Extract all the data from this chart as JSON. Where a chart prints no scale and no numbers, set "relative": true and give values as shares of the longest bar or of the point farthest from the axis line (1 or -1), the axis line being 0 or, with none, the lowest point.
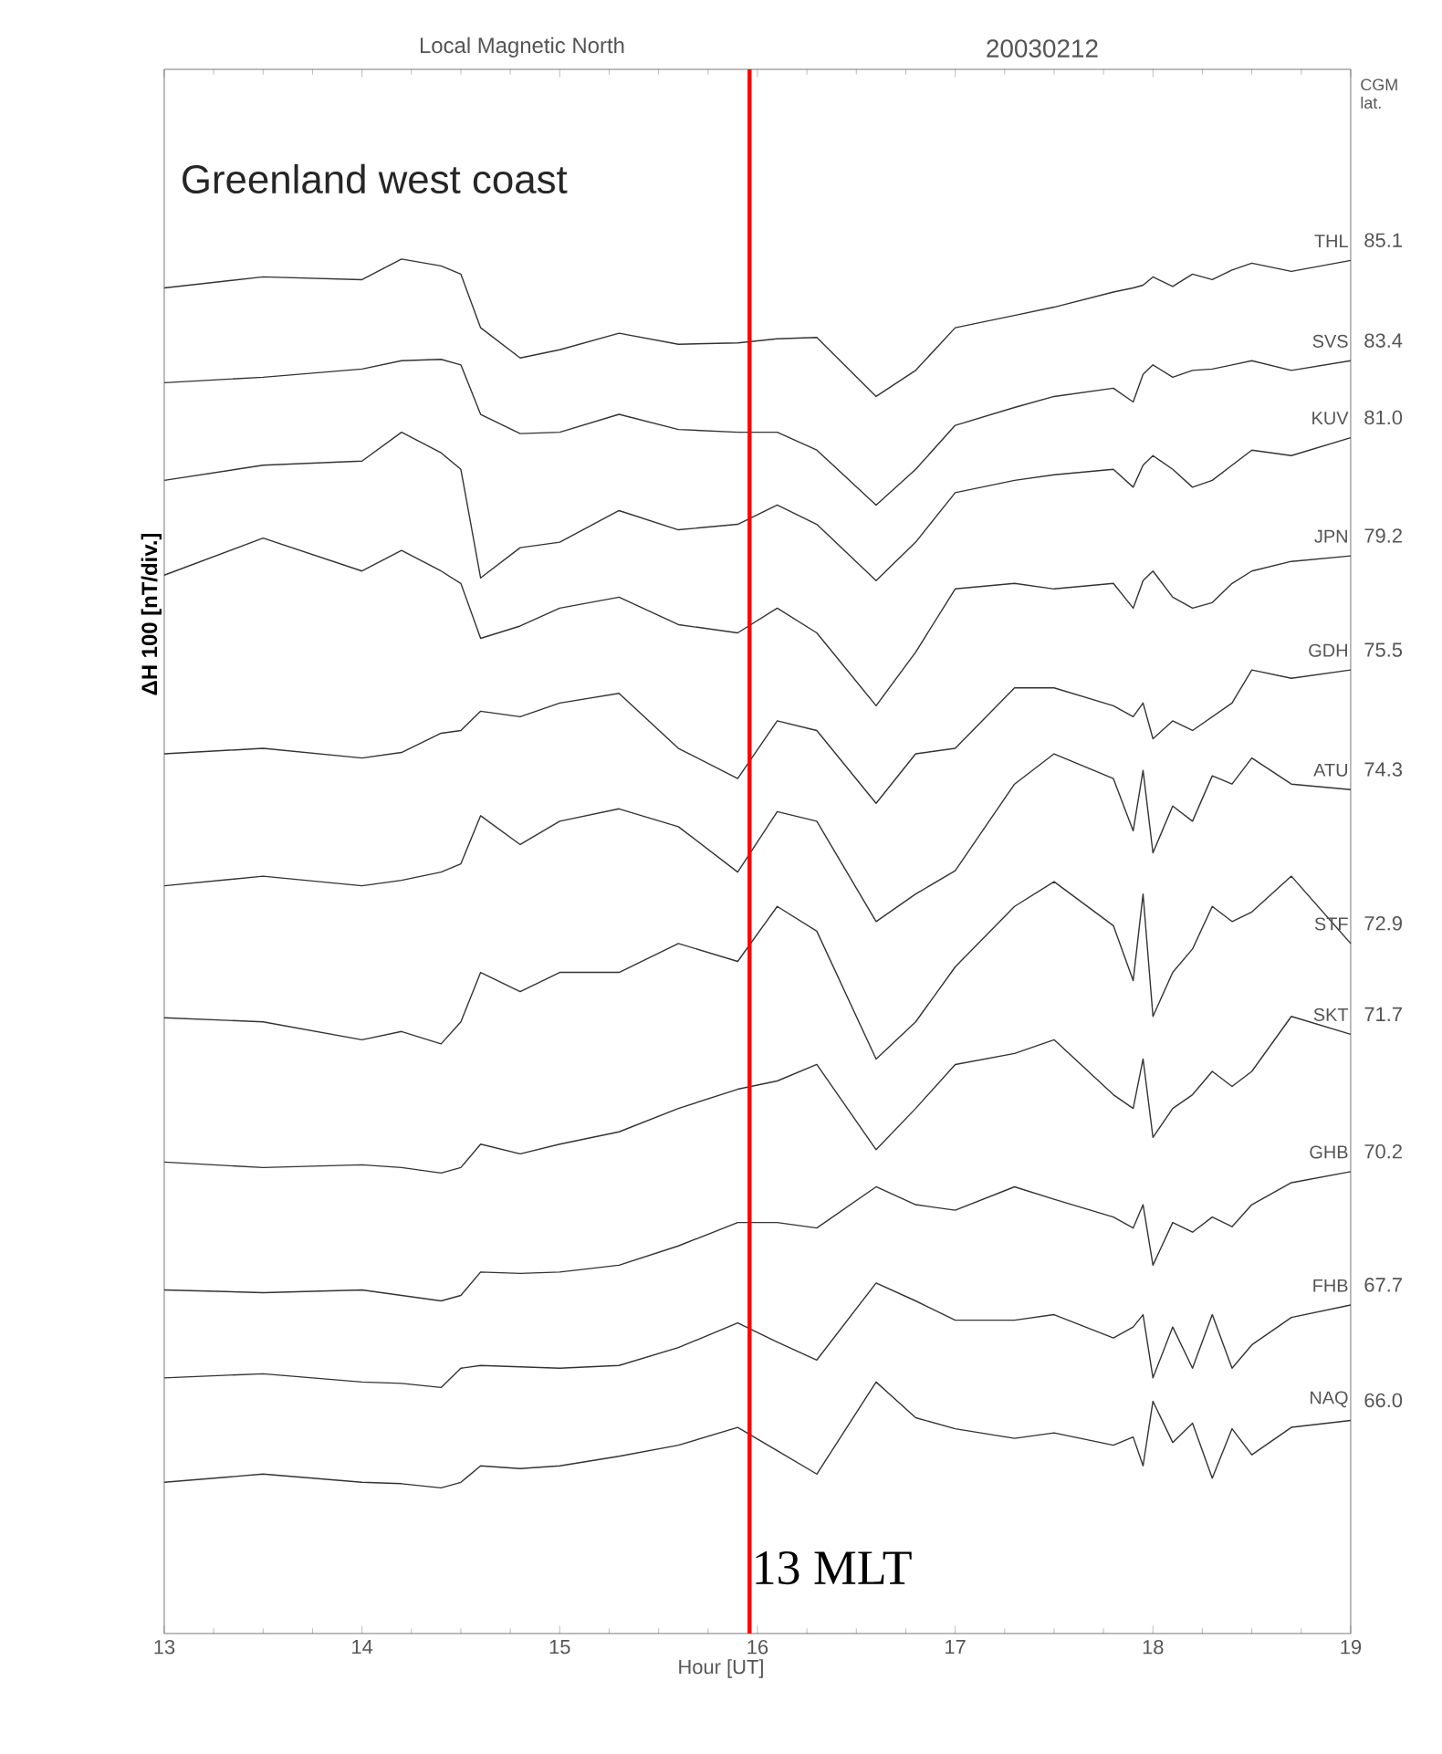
{
  "chart_data": {
    "type": "line",
    "relative": true,
    "title": "Local Magnetic North",
    "subtitle": "20030212",
    "xlabel": "Hour  [UT]",
    "ylabel": "ΔH   100 [nT/div.]",
    "xlim": [
      13,
      19
    ],
    "xticks": [
      13,
      14,
      15,
      16,
      17,
      18,
      19
    ],
    "x": [
      13,
      13.5,
      14,
      14.2,
      14.4,
      14.5,
      14.6,
      14.8,
      15,
      15.3,
      15.6,
      15.9,
      16.1,
      16.3,
      16.6,
      16.8,
      17,
      17.3,
      17.5,
      17.8,
      17.9,
      17.95,
      18,
      18.1,
      18.2,
      18.3,
      18.4,
      18.5,
      18.7,
      19
    ],
    "series": [
      {
        "name": "THL",
        "color": "#333333",
        "values": [
          0.979,
          0.987,
          0.985,
          1,
          0.995,
          0.989,
          0.95,
          0.928,
          0.934,
          0.946,
          0.938,
          0.939,
          0.942,
          0.943,
          0.9,
          0.919,
          0.95,
          0.959,
          0.965,
          0.976,
          0.979,
          0.981,
          0.987,
          0.98,
          0.989,
          0.985,
          0.992,
          0.997,
          0.991,
          0.999
        ]
      },
      {
        "name": "SVS",
        "color": "#333333",
        "values": [
          0.91,
          0.914,
          0.92,
          0.926,
          0.927,
          0.923,
          0.887,
          0.873,
          0.874,
          0.887,
          0.876,
          0.874,
          0.874,
          0.861,
          0.821,
          0.847,
          0.879,
          0.892,
          0.9,
          0.906,
          0.896,
          0.916,
          0.923,
          0.914,
          0.919,
          0.92,
          0.923,
          0.926,
          0.919,
          0.926
        ]
      },
      {
        "name": "KUV",
        "color": "#333333",
        "values": [
          0.839,
          0.85,
          0.853,
          0.874,
          0.859,
          0.847,
          0.768,
          0.79,
          0.794,
          0.817,
          0.803,
          0.807,
          0.821,
          0.807,
          0.766,
          0.794,
          0.83,
          0.839,
          0.843,
          0.847,
          0.834,
          0.85,
          0.857,
          0.847,
          0.834,
          0.839,
          0.85,
          0.861,
          0.857,
          0.87
        ]
      },
      {
        "name": "JPN",
        "color": "#333333",
        "values": [
          0.77,
          0.797,
          0.773,
          0.788,
          0.773,
          0.764,
          0.724,
          0.733,
          0.746,
          0.754,
          0.734,
          0.728,
          0.746,
          0.728,
          0.675,
          0.714,
          0.76,
          0.764,
          0.76,
          0.764,
          0.746,
          0.766,
          0.773,
          0.754,
          0.746,
          0.75,
          0.764,
          0.773,
          0.78,
          0.784
        ]
      },
      {
        "name": "GDH",
        "color": "#333333",
        "values": [
          0.64,
          0.644,
          0.637,
          0.641,
          0.655,
          0.657,
          0.671,
          0.667,
          0.677,
          0.684,
          0.644,
          0.622,
          0.664,
          0.657,
          0.604,
          0.64,
          0.644,
          0.688,
          0.688,
          0.675,
          0.667,
          0.677,
          0.651,
          0.664,
          0.657,
          0.667,
          0.677,
          0.701,
          0.695,
          0.701
        ]
      },
      {
        "name": "ATU",
        "color": "#333333",
        "values": [
          0.544,
          0.551,
          0.544,
          0.548,
          0.554,
          0.56,
          0.595,
          0.574,
          0.591,
          0.6,
          0.587,
          0.554,
          0.598,
          0.591,
          0.518,
          0.538,
          0.555,
          0.618,
          0.64,
          0.622,
          0.584,
          0.628,
          0.568,
          0.602,
          0.591,
          0.624,
          0.618,
          0.637,
          0.618,
          0.614
        ]
      },
      {
        "name": "STF",
        "color": "#333333",
        "values": [
          0.448,
          0.445,
          0.432,
          0.438,
          0.429,
          0.445,
          0.481,
          0.467,
          0.481,
          0.481,
          0.502,
          0.489,
          0.529,
          0.511,
          0.418,
          0.445,
          0.485,
          0.529,
          0.547,
          0.515,
          0.475,
          0.538,
          0.449,
          0.481,
          0.498,
          0.529,
          0.518,
          0.525,
          0.551,
          0.502
        ]
      },
      {
        "name": "SKT",
        "color": "#333333",
        "values": [
          0.343,
          0.339,
          0.341,
          0.339,
          0.335,
          0.339,
          0.356,
          0.349,
          0.356,
          0.365,
          0.382,
          0.396,
          0.402,
          0.414,
          0.352,
          0.382,
          0.414,
          0.422,
          0.432,
          0.392,
          0.382,
          0.418,
          0.361,
          0.382,
          0.392,
          0.409,
          0.398,
          0.409,
          0.449,
          0.436
        ]
      },
      {
        "name": "GHB",
        "color": "#333333",
        "values": [
          0.25,
          0.248,
          0.25,
          0.246,
          0.242,
          0.246,
          0.263,
          0.262,
          0.263,
          0.268,
          0.282,
          0.299,
          0.299,
          0.295,
          0.325,
          0.312,
          0.308,
          0.325,
          0.316,
          0.303,
          0.295,
          0.312,
          0.268,
          0.299,
          0.292,
          0.303,
          0.296,
          0.312,
          0.328,
          0.336
        ]
      },
      {
        "name": "FHB",
        "color": "#333333",
        "values": [
          0.186,
          0.189,
          0.183,
          0.182,
          0.179,
          0.193,
          0.195,
          0.194,
          0.193,
          0.195,
          0.208,
          0.226,
          0.212,
          0.199,
          0.255,
          0.242,
          0.228,
          0.228,
          0.232,
          0.215,
          0.223,
          0.232,
          0.186,
          0.223,
          0.193,
          0.232,
          0.193,
          0.21,
          0.23,
          0.239
        ]
      },
      {
        "name": "NAQ",
        "color": "#333333",
        "values": [
          0.11,
          0.116,
          0.11,
          0.109,
          0.106,
          0.11,
          0.122,
          0.12,
          0.122,
          0.129,
          0.137,
          0.15,
          0.133,
          0.116,
          0.183,
          0.157,
          0.149,
          0.142,
          0.146,
          0.137,
          0.143,
          0.122,
          0.169,
          0.139,
          0.153,
          0.113,
          0.149,
          0.13,
          0.15,
          0.155
        ]
      }
    ],
    "ref_lines": [
      {
        "axis": "x",
        "value": 15.96,
        "label": "13 MLT",
        "color": "#ff0000"
      }
    ],
    "annotations": [
      "Greenland west coast",
      "CGM lat.",
      "85.1",
      "83.4",
      "81.0",
      "79.2",
      "75.5",
      "74.3",
      "72.9",
      "71.7",
      "70.2",
      "67.7",
      "66.0"
    ]
  }
}
